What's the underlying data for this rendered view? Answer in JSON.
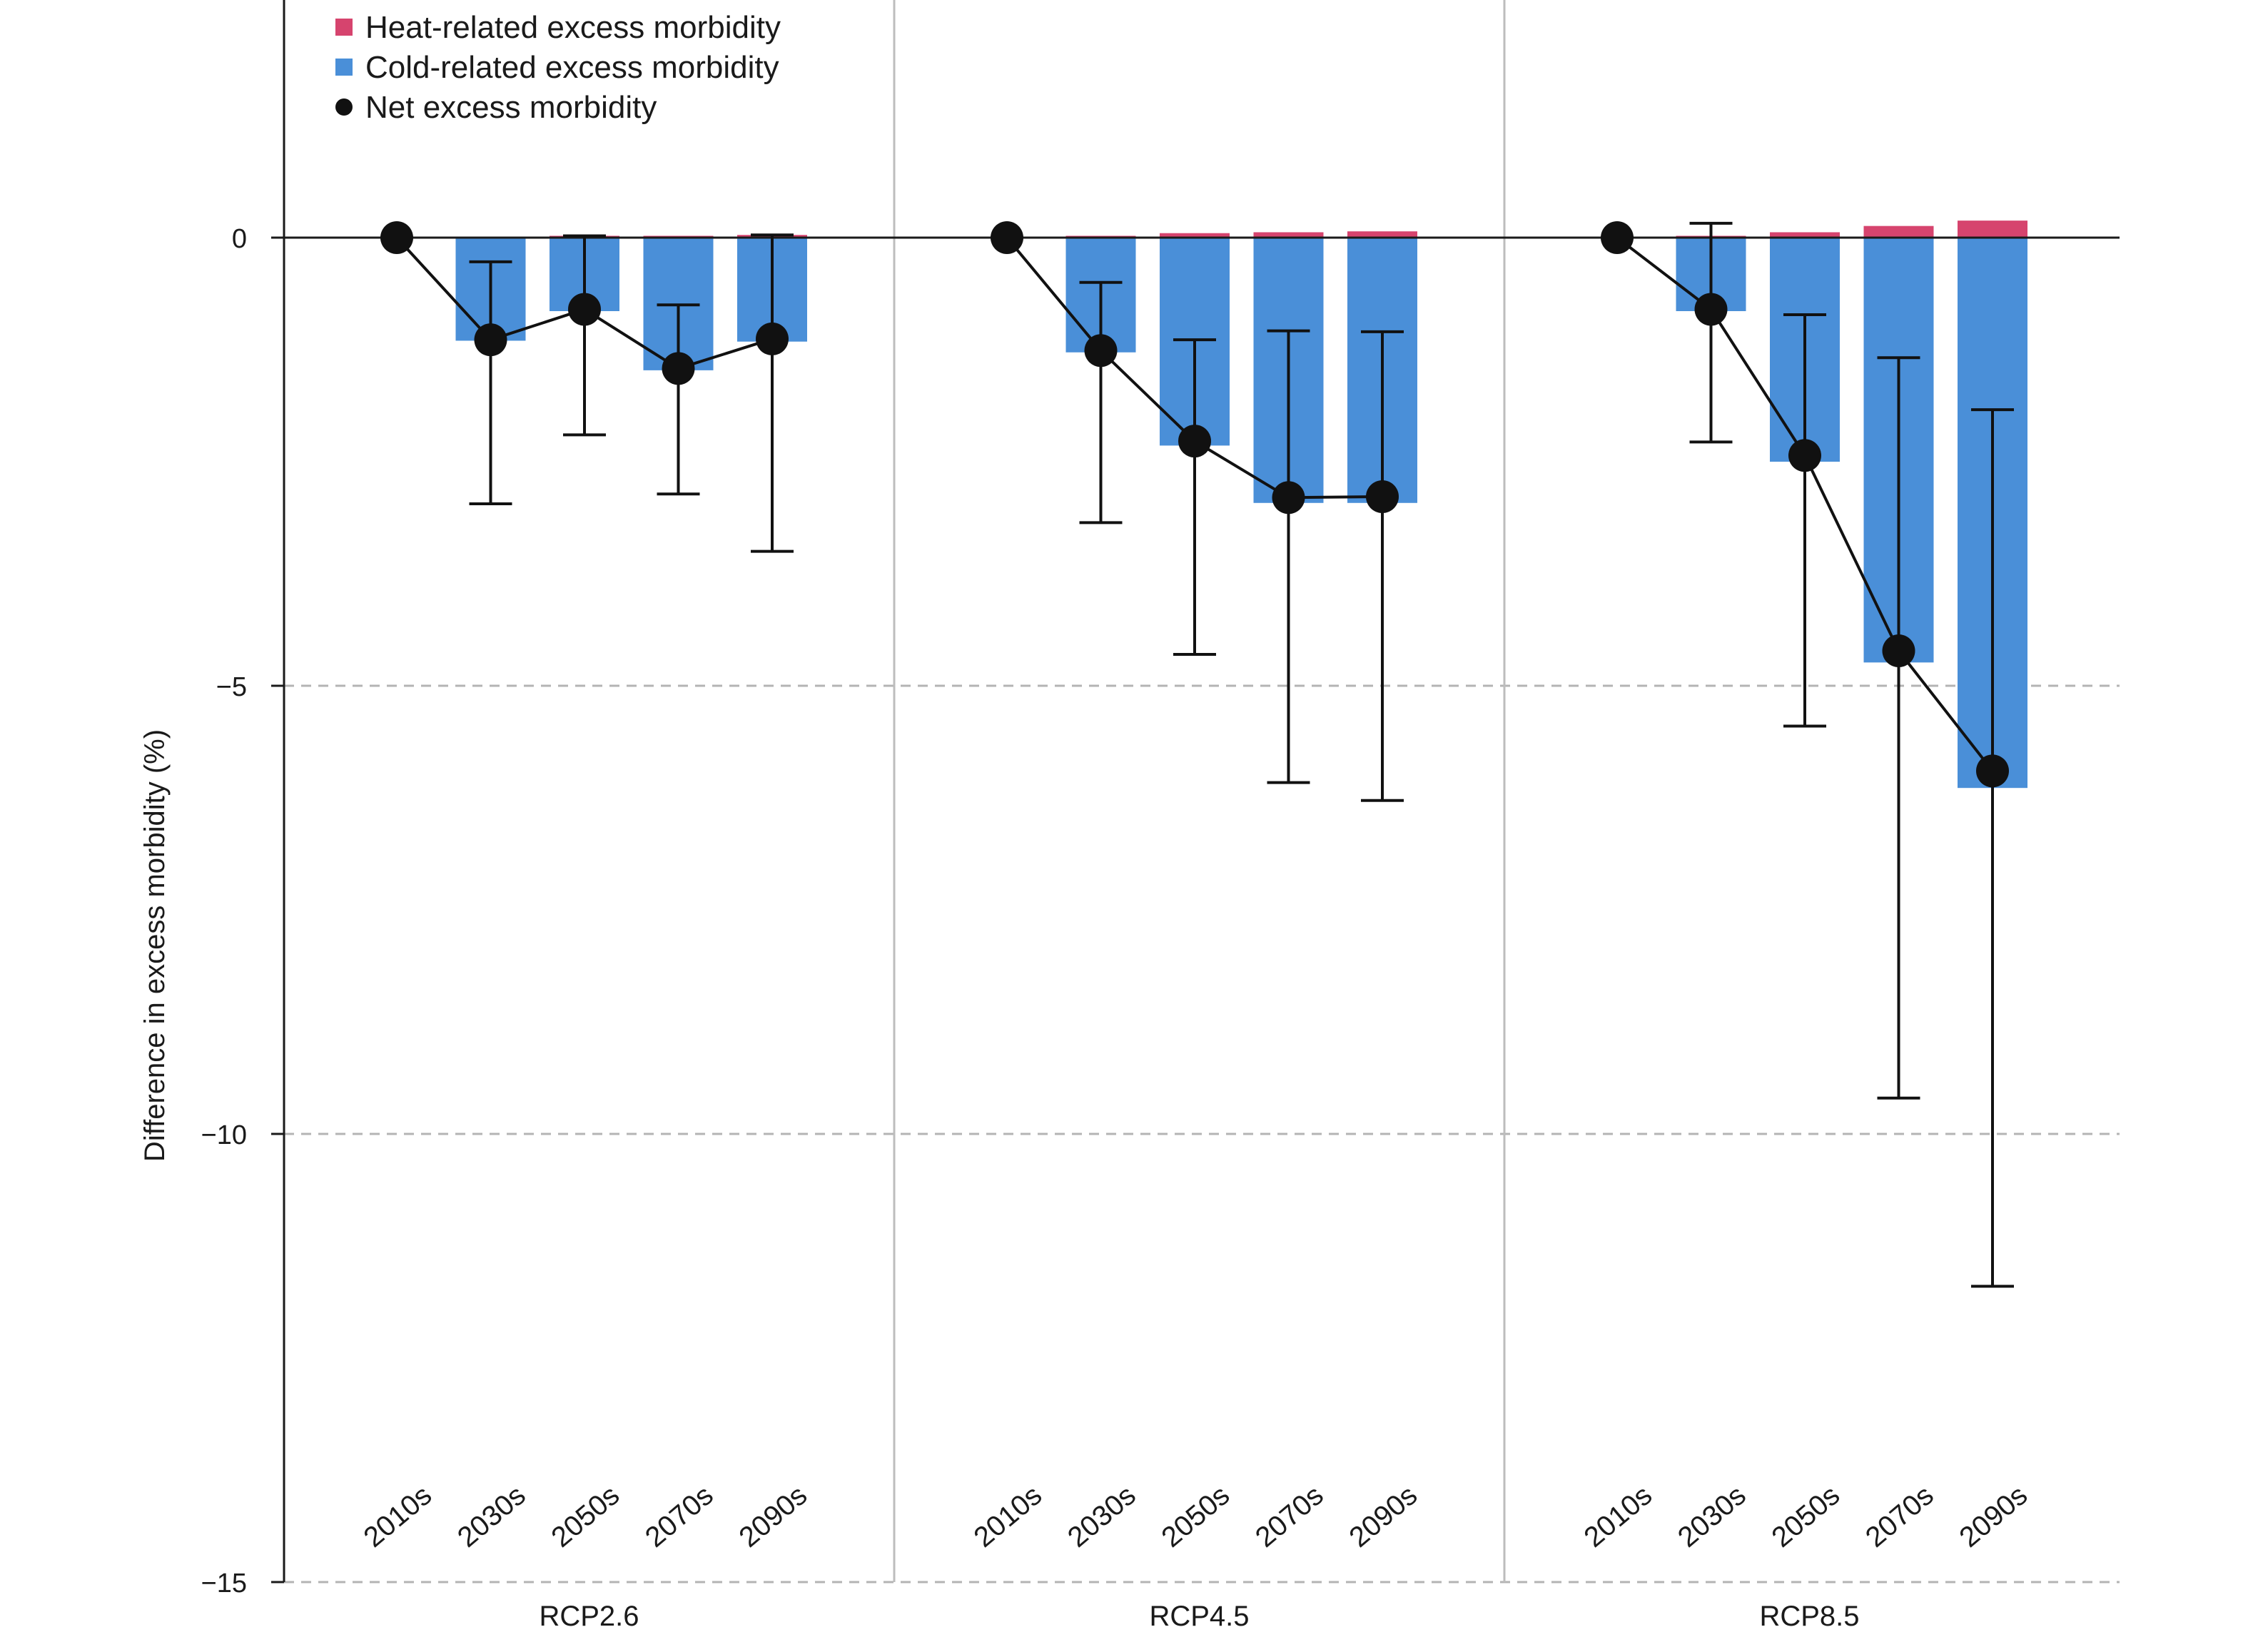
{
  "chart_data": {
    "type": "bar",
    "ylabel": "Difference in excess morbidity (%)",
    "ylim": [
      -15,
      2.6
    ],
    "yticks": [
      0,
      -5,
      -10,
      -15
    ],
    "ytick_labels": [
      "0",
      "−5",
      "−10",
      "−15"
    ],
    "grid": "dashed horizontal at -5, -10, -15",
    "legend_position": "top-left",
    "colors": {
      "heat": "#d6446e",
      "cold": "#4a8fd8",
      "net": "#111111"
    },
    "legend": [
      {
        "key": "heat",
        "label": "Heat-related excess morbidity",
        "marker": "square"
      },
      {
        "key": "cold",
        "label": "Cold-related excess morbidity",
        "marker": "square"
      },
      {
        "key": "net",
        "label": "Net excess morbidity",
        "marker": "circle"
      }
    ],
    "categories": [
      "2010s",
      "2030s",
      "2050s",
      "2070s",
      "2090s"
    ],
    "panels": [
      {
        "name": "RCP2.6",
        "heat": [
          0,
          0.01,
          0.02,
          0.02,
          0.03
        ],
        "cold": [
          0,
          -1.15,
          -0.82,
          -1.48,
          -1.16
        ],
        "net": [
          0,
          -1.14,
          -0.8,
          -1.46,
          -1.13
        ],
        "ci_low": [
          0,
          -2.97,
          -2.2,
          -2.86,
          -3.5
        ],
        "ci_high": [
          0,
          -0.27,
          0.02,
          -0.75,
          0.03
        ]
      },
      {
        "name": "RCP4.5",
        "heat": [
          0,
          0.02,
          0.05,
          0.06,
          0.07
        ],
        "cold": [
          0,
          -1.28,
          -2.32,
          -2.96,
          -2.96
        ],
        "net": [
          0,
          -1.26,
          -2.27,
          -2.9,
          -2.89
        ],
        "ci_low": [
          0,
          -3.18,
          -4.65,
          -6.08,
          -6.28
        ],
        "ci_high": [
          0,
          -0.5,
          -1.14,
          -1.04,
          -1.05
        ]
      },
      {
        "name": "RCP8.5",
        "heat": [
          0,
          0.02,
          0.06,
          0.13,
          0.19
        ],
        "cold": [
          0,
          -0.82,
          -2.5,
          -4.74,
          -6.14
        ],
        "net": [
          0,
          -0.8,
          -2.43,
          -4.61,
          -5.95
        ],
        "ci_low": [
          0,
          -2.28,
          -5.45,
          -9.6,
          -11.7
        ],
        "ci_high": [
          0,
          0.16,
          -0.86,
          -1.34,
          -1.92
        ]
      }
    ]
  }
}
